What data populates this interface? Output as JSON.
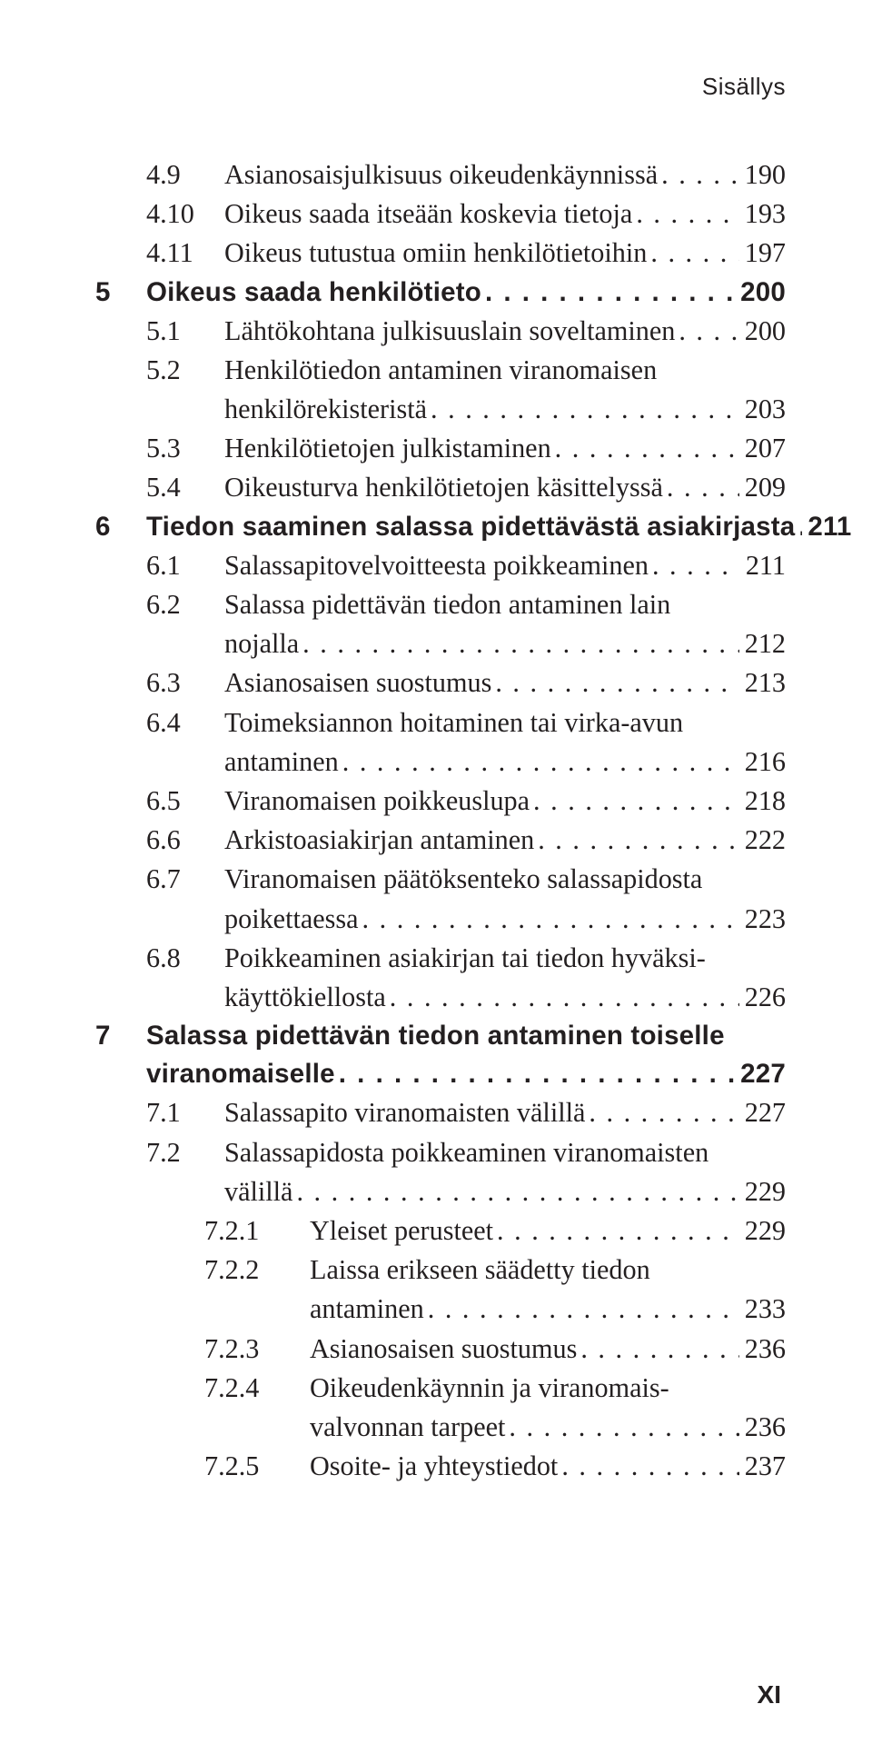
{
  "header": "Sisällys",
  "footer_page": "XI",
  "entries": [
    {
      "level": 2,
      "num": "4.9",
      "title": "Asianosaisjulkisuus oikeudenkäynnissä",
      "page": "190",
      "bold": false
    },
    {
      "level": 2,
      "num": "4.10",
      "title": "Oikeus saada itseään koskevia tietoja",
      "page": "193",
      "bold": false
    },
    {
      "level": 2,
      "num": "4.11",
      "title": "Oikeus tutustua omiin henkilötietoihin",
      "page": "197",
      "bold": false
    },
    {
      "level": 1,
      "num": "5",
      "title": "Oikeus saada henkilötieto",
      "page": "200",
      "bold": true
    },
    {
      "level": 2,
      "num": "5.1",
      "title": "Lähtökohtana julkisuuslain soveltaminen",
      "page": "200",
      "bold": false
    },
    {
      "level": 2,
      "num": "5.2",
      "title": "Henkilötiedon antaminen viranomaisen",
      "cont": "henkilörekisteristä",
      "page": "203",
      "bold": false
    },
    {
      "level": 2,
      "num": "5.3",
      "title": "Henkilötietojen julkistaminen",
      "page": "207",
      "bold": false
    },
    {
      "level": 2,
      "num": "5.4",
      "title": "Oikeusturva henkilötietojen käsittelyssä",
      "page": "209",
      "bold": false
    },
    {
      "level": 1,
      "num": "6",
      "title": "Tiedon saaminen salassa pidettävästä asiakirjasta",
      "page": "211",
      "bold": true
    },
    {
      "level": 2,
      "num": "6.1",
      "title": "Salassapitovelvoitteesta poikkeaminen",
      "page": "211",
      "bold": false
    },
    {
      "level": 2,
      "num": "6.2",
      "title": "Salassa pidettävän tiedon antaminen lain",
      "cont": "nojalla",
      "page": "212",
      "bold": false
    },
    {
      "level": 2,
      "num": "6.3",
      "title": "Asianosaisen suostumus",
      "page": "213",
      "bold": false
    },
    {
      "level": 2,
      "num": "6.4",
      "title": "Toimeksiannon hoitaminen tai virka-avun",
      "cont": "antaminen",
      "page": "216",
      "bold": false
    },
    {
      "level": 2,
      "num": "6.5",
      "title": "Viranomaisen poikkeuslupa",
      "page": "218",
      "bold": false
    },
    {
      "level": 2,
      "num": "6.6",
      "title": "Arkistoasiakirjan antaminen",
      "page": "222",
      "bold": false
    },
    {
      "level": 2,
      "num": "6.7",
      "title": "Viranomaisen päätöksenteko salassapidosta",
      "cont": "poikettaessa",
      "page": "223",
      "bold": false
    },
    {
      "level": 2,
      "num": "6.8",
      "title": "Poikkeaminen asiakirjan tai tiedon hyväksi-",
      "cont": "käyttökiellosta",
      "page": "226",
      "bold": false
    },
    {
      "level": 1,
      "num": "7",
      "title": "Salassa pidettävän tiedon antaminen toiselle",
      "cont": "viranomaiselle",
      "page": "227",
      "bold": true
    },
    {
      "level": 2,
      "num": "7.1",
      "title": "Salassapito viranomaisten välillä",
      "page": "227",
      "bold": false
    },
    {
      "level": 2,
      "num": "7.2",
      "title": "Salassapidosta poikkeaminen viranomaisten",
      "cont": "välillä",
      "page": "229",
      "bold": false
    },
    {
      "level": 3,
      "num": "7.2.1",
      "title": "Yleiset perusteet",
      "page": "229",
      "bold": false
    },
    {
      "level": 3,
      "num": "7.2.2",
      "title": "Laissa erikseen säädetty tiedon",
      "cont": "antaminen",
      "page": "233",
      "bold": false
    },
    {
      "level": 3,
      "num": "7.2.3",
      "title": "Asianosaisen suostumus",
      "page": "236",
      "bold": false
    },
    {
      "level": 3,
      "num": "7.2.4",
      "title": "Oikeudenkäynnin ja viranomais-",
      "cont": "valvonnan tarpeet",
      "page": "236",
      "bold": false
    },
    {
      "level": 3,
      "num": "7.2.5",
      "title": "Osoite- ja yhteystiedot",
      "page": "237",
      "bold": false
    }
  ]
}
